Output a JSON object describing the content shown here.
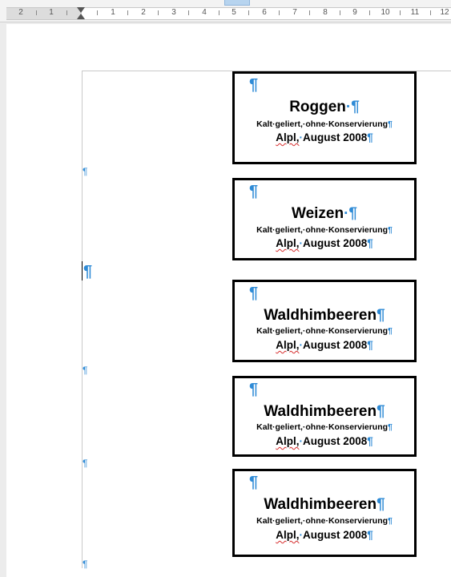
{
  "ruler": {
    "numbers": [
      "2",
      "1",
      "1",
      "2",
      "3",
      "4",
      "5",
      "6",
      "7",
      "8",
      "9",
      "10",
      "11",
      "12"
    ]
  },
  "para_mark": "¶",
  "labels": [
    {
      "title": "Roggen",
      "subtitle": "Kalt geliert, ohne Konservierung",
      "place": "Alpl,",
      "date": "August 2008"
    },
    {
      "title": "Weizen",
      "subtitle": "Kalt geliert, ohne Konservierung",
      "place": "Alpl,",
      "date": "August 2008"
    },
    {
      "title": "Waldhimbeeren",
      "subtitle": "Kalt geliert, ohne Konservierung",
      "place": "Alpl,",
      "date": "August 2008"
    },
    {
      "title": "Waldhimbeeren",
      "subtitle": "Kalt geliert, ohne Konservierung",
      "place": "Alpl,",
      "date": "August 2008"
    },
    {
      "title": "Waldhimbeeren",
      "subtitle": "Kalt geliert, ohne Konservierung",
      "place": "Alpl,",
      "date": "August 2008"
    }
  ],
  "colors": {
    "formatting_marks": "#2f8bd6",
    "spellcheck_underline": "#d62a2a"
  }
}
